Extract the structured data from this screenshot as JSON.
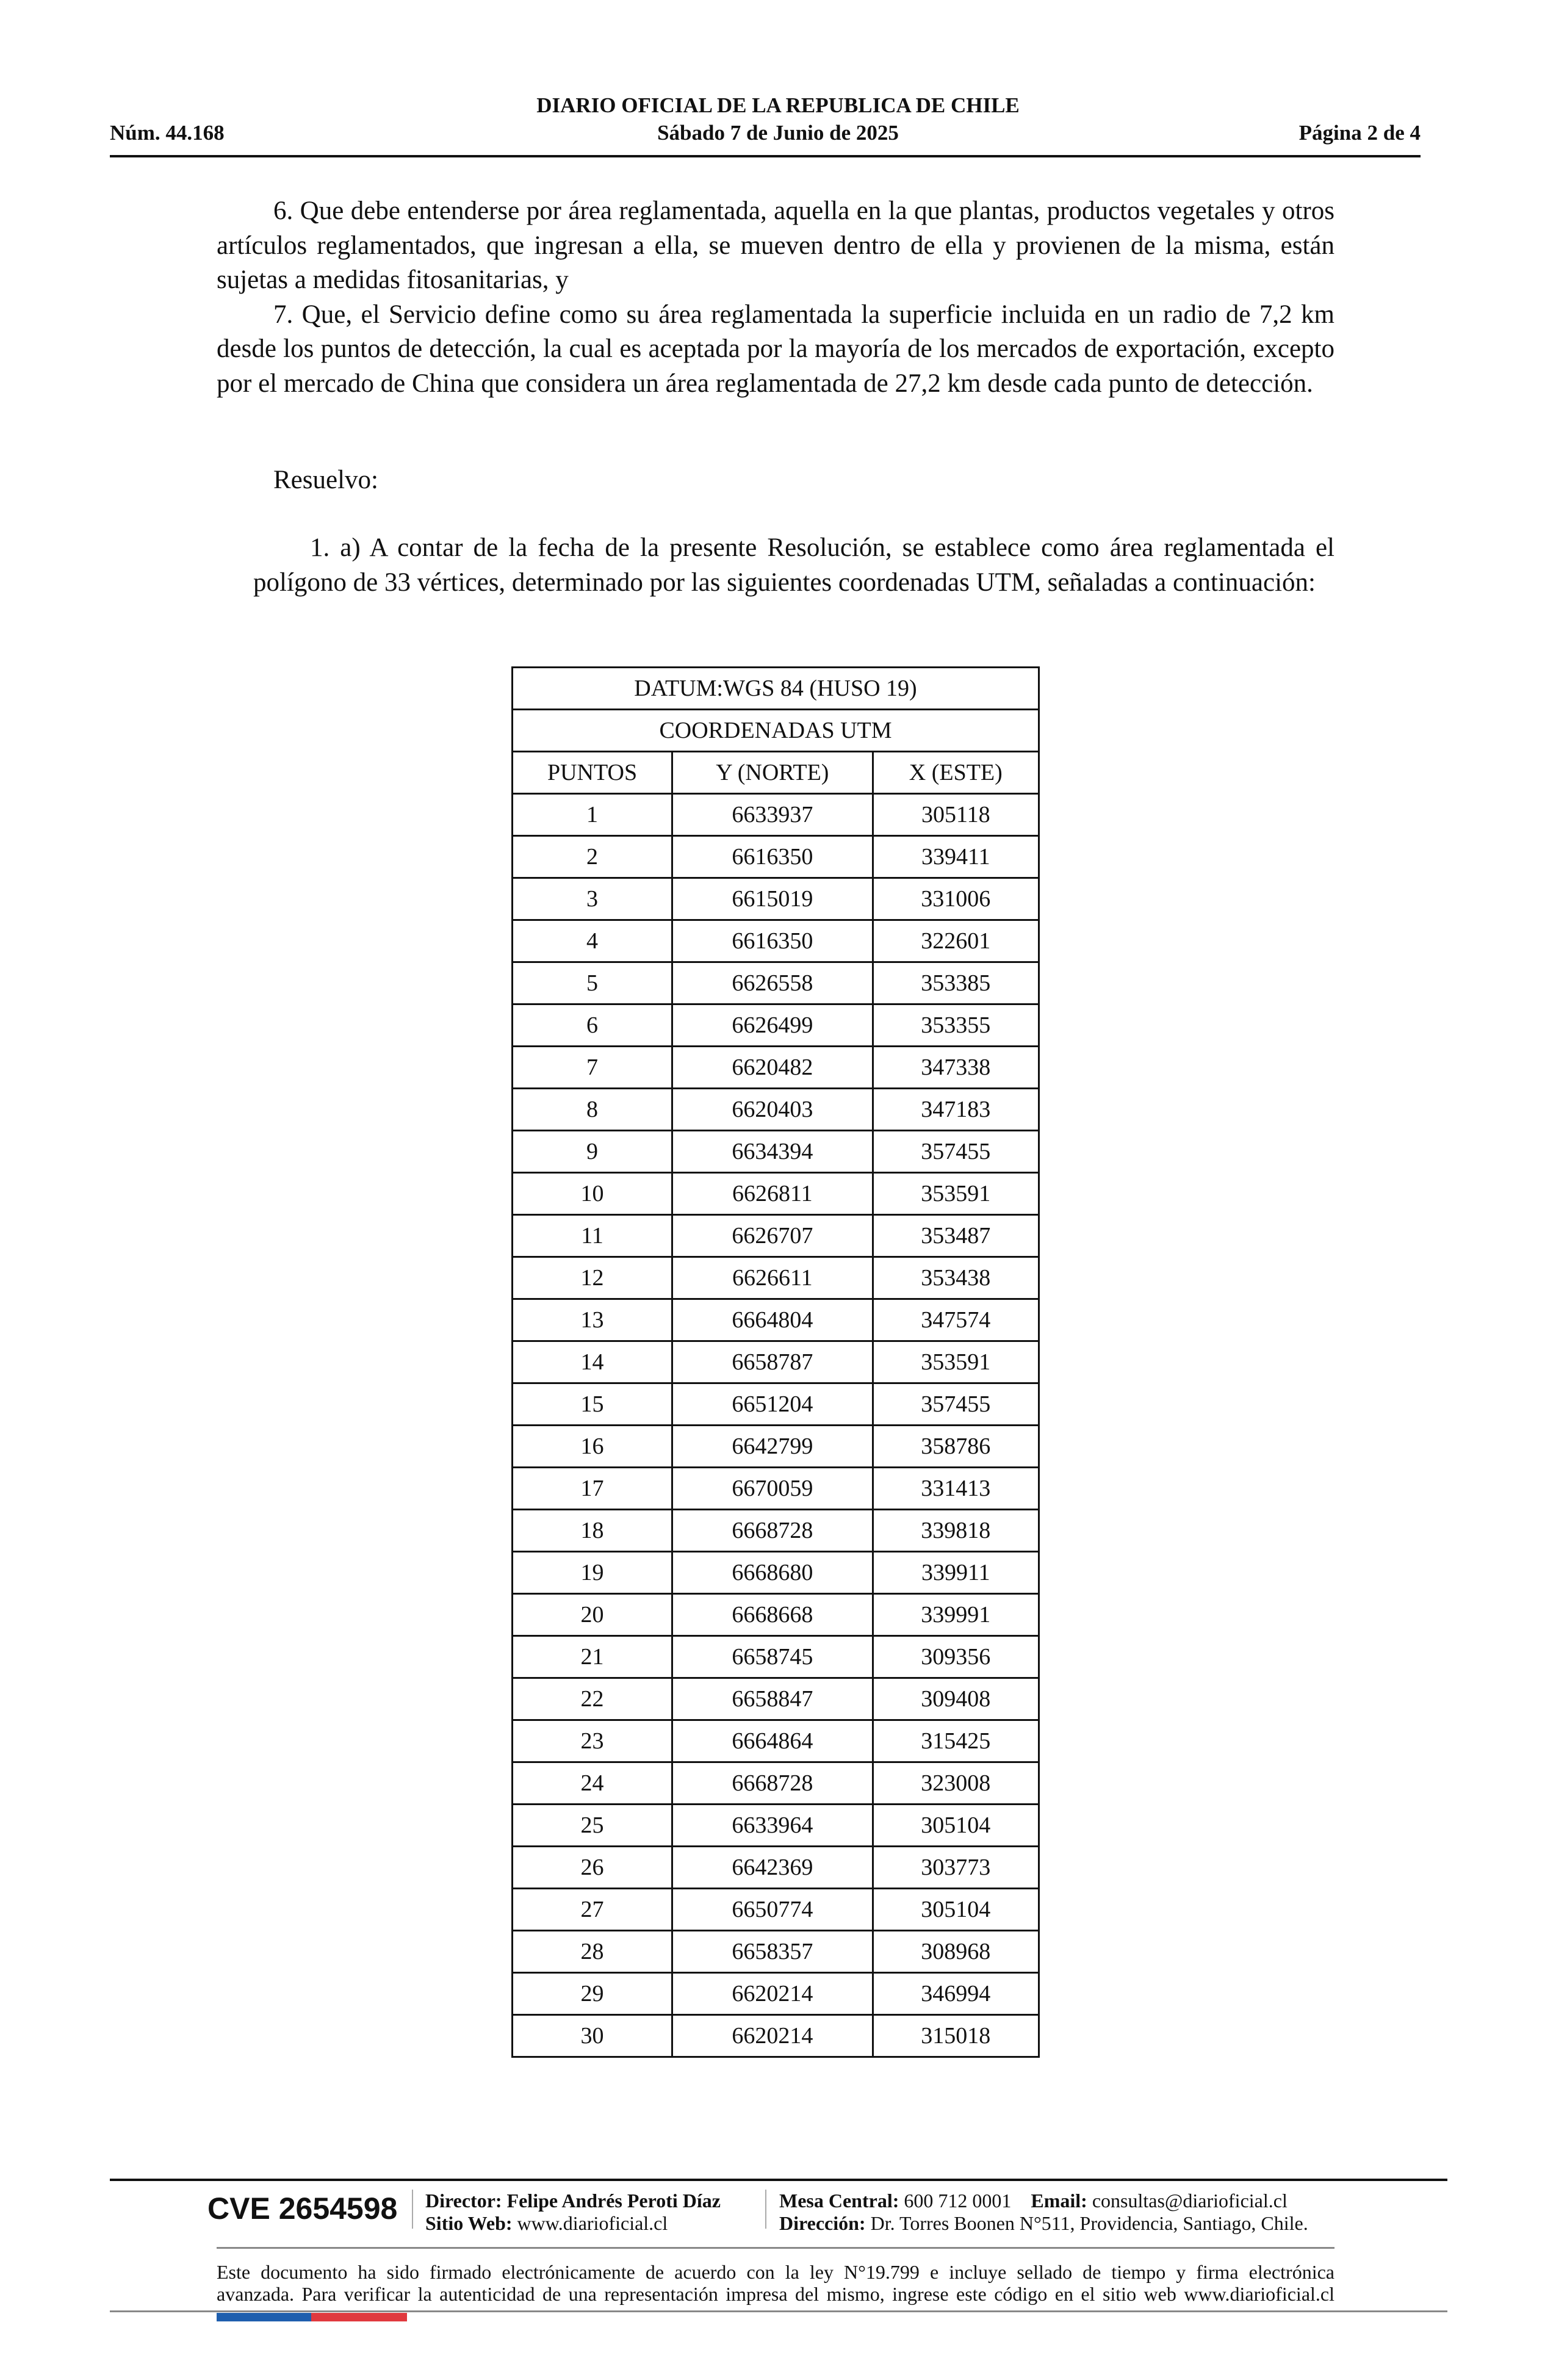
{
  "header": {
    "title": "DIARIO OFICIAL DE LA REPUBLICA DE CHILE",
    "number": "Núm. 44.168",
    "date": "Sábado 7 de Junio de 2025",
    "page": "Página 2 de 4"
  },
  "body": {
    "paragraphs": [
      "6. Que debe entenderse por área reglamentada, aquella en la que plantas, productos vegetales y otros artículos reglamentados, que ingresan a ella, se mueven dentro de ella y provienen de la misma, están sujetas a medidas fitosanitarias, y",
      "7. Que, el Servicio define como su área reglamentada la superficie incluida en un radio de 7,2 km desde los puntos de detección, la cual es aceptada por la mayoría de los mercados de exportación, excepto por el mercado de China que considera un área reglamentada de 27,2 km desde cada punto de detección."
    ],
    "resuelvo": "Resuelvo:",
    "item1": "1. a) A contar de la fecha de la presente Resolución, se establece como área reglamentada el polígono de 33 vértices, determinado por las siguientes coordenadas UTM, señaladas a continuación:"
  },
  "table": {
    "datum": "DATUM:WGS 84 (HUSO 19)",
    "subtitle": "COORDENADAS UTM",
    "columns": [
      "PUNTOS",
      "Y (NORTE)",
      "X (ESTE)"
    ],
    "rows": [
      [
        "1",
        "6633937",
        "305118"
      ],
      [
        "2",
        "6616350",
        "339411"
      ],
      [
        "3",
        "6615019",
        "331006"
      ],
      [
        "4",
        "6616350",
        "322601"
      ],
      [
        "5",
        "6626558",
        "353385"
      ],
      [
        "6",
        "6626499",
        "353355"
      ],
      [
        "7",
        "6620482",
        "347338"
      ],
      [
        "8",
        "6620403",
        "347183"
      ],
      [
        "9",
        "6634394",
        "357455"
      ],
      [
        "10",
        "6626811",
        "353591"
      ],
      [
        "11",
        "6626707",
        "353487"
      ],
      [
        "12",
        "6626611",
        "353438"
      ],
      [
        "13",
        "6664804",
        "347574"
      ],
      [
        "14",
        "6658787",
        "353591"
      ],
      [
        "15",
        "6651204",
        "357455"
      ],
      [
        "16",
        "6642799",
        "358786"
      ],
      [
        "17",
        "6670059",
        "331413"
      ],
      [
        "18",
        "6668728",
        "339818"
      ],
      [
        "19",
        "6668680",
        "339911"
      ],
      [
        "20",
        "6668668",
        "339991"
      ],
      [
        "21",
        "6658745",
        "309356"
      ],
      [
        "22",
        "6658847",
        "309408"
      ],
      [
        "23",
        "6664864",
        "315425"
      ],
      [
        "24",
        "6668728",
        "323008"
      ],
      [
        "25",
        "6633964",
        "305104"
      ],
      [
        "26",
        "6642369",
        "303773"
      ],
      [
        "27",
        "6650774",
        "305104"
      ],
      [
        "28",
        "6658357",
        "308968"
      ],
      [
        "29",
        "6620214",
        "346994"
      ],
      [
        "30",
        "6620214",
        "315018"
      ]
    ]
  },
  "footer": {
    "cve": "CVE 2654598",
    "director_label": "Director:",
    "director": "Felipe Andrés Peroti Díaz",
    "web_label": "Sitio Web:",
    "web": "www.diarioficial.cl",
    "mesa_label": "Mesa Central:",
    "mesa": "600 712 0001",
    "email_label": "Email:",
    "email": "consultas@diarioficial.cl",
    "address_label": "Dirección:",
    "address": "Dr. Torres Boonen N°511, Providencia, Santiago, Chile.",
    "legal_1": "Este documento ha sido firmado electrónicamente de acuerdo con la ley N°19.799 e incluye sellado de tiempo y firma electrónica",
    "legal_2": "avanzada. Para verificar la autenticidad de una representación impresa del mismo, ingrese este código en el sitio web www.diarioficial.cl",
    "flag_colors": [
      "#1f5fae",
      "#e0393e"
    ]
  }
}
